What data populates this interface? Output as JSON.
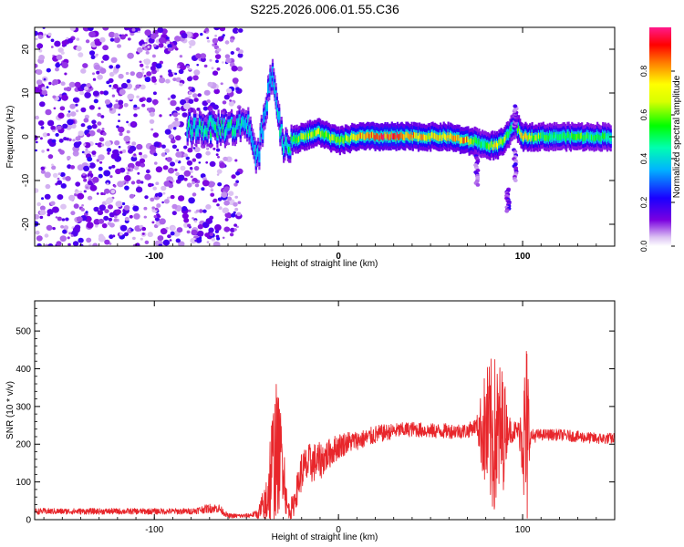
{
  "title": "S225.2026.006.01.55.C36",
  "chart_data": [
    {
      "type": "heatmap",
      "title": "S225.2026.006.01.55.C36",
      "xlabel": "Height of straight line (km)",
      "ylabel": "Frequency (Hz)",
      "xlim": [
        -165,
        150
      ],
      "ylim": [
        -25,
        25
      ],
      "x_ticks": [
        -100,
        0,
        100
      ],
      "y_ticks": [
        -20,
        -10,
        0,
        10,
        20
      ],
      "colorbar": {
        "label": "Normalized spectral amplitude",
        "range": [
          0.0,
          1.0
        ],
        "ticks": [
          "0.0",
          "0.2",
          "0.4",
          "0.6",
          "0.8"
        ],
        "tick_values": [
          0.0,
          0.2,
          0.4,
          0.6,
          0.8
        ]
      },
      "noise_region_x": [
        -165,
        -53
      ],
      "ridge": [
        {
          "x": -82,
          "y": 2,
          "amp": 0.45
        },
        {
          "x": -55,
          "y": 2,
          "amp": 0.45
        },
        {
          "x": -50,
          "y": 4,
          "amp": 0.4
        },
        {
          "x": -47,
          "y": 0,
          "amp": 0.35
        },
        {
          "x": -44,
          "y": -6,
          "amp": 0.35
        },
        {
          "x": -40,
          "y": 6,
          "amp": 0.35
        },
        {
          "x": -36,
          "y": 15,
          "amp": 0.35
        },
        {
          "x": -30,
          "y": -2,
          "amp": 0.45
        },
        {
          "x": -20,
          "y": 0,
          "amp": 0.6
        },
        {
          "x": -10,
          "y": 1,
          "amp": 0.65
        },
        {
          "x": 0,
          "y": -1,
          "amp": 0.6
        },
        {
          "x": 10,
          "y": 0,
          "amp": 0.75
        },
        {
          "x": 20,
          "y": 0,
          "amp": 0.85
        },
        {
          "x": 30,
          "y": 0,
          "amp": 0.9
        },
        {
          "x": 40,
          "y": 0,
          "amp": 0.8
        },
        {
          "x": 50,
          "y": 0,
          "amp": 0.7
        },
        {
          "x": 60,
          "y": 0,
          "amp": 0.75
        },
        {
          "x": 70,
          "y": -1,
          "amp": 0.8
        },
        {
          "x": 75,
          "y": -1,
          "amp": 0.5
        },
        {
          "x": 80,
          "y": -2,
          "amp": 0.5
        },
        {
          "x": 86,
          "y": -2,
          "amp": 0.75
        },
        {
          "x": 90,
          "y": -1,
          "amp": 0.6
        },
        {
          "x": 96,
          "y": 3,
          "amp": 0.4
        },
        {
          "x": 100,
          "y": 0,
          "amp": 0.75
        },
        {
          "x": 110,
          "y": 0,
          "amp": 0.55
        },
        {
          "x": 120,
          "y": 0,
          "amp": 0.5
        },
        {
          "x": 130,
          "y": 0,
          "amp": 0.55
        },
        {
          "x": 140,
          "y": 0,
          "amp": 0.5
        },
        {
          "x": 148,
          "y": 0,
          "amp": 0.5
        }
      ]
    },
    {
      "type": "line",
      "xlabel": "Height of straight line (km)",
      "ylabel": "SNR (10 * v/v)",
      "xlim": [
        -165,
        150
      ],
      "ylim": [
        0,
        580
      ],
      "x_ticks": [
        -100,
        0,
        100
      ],
      "y_ticks": [
        0,
        100,
        200,
        300,
        400,
        500
      ],
      "series": [
        {
          "name": "SNR",
          "color": "#e8262b",
          "x": [
            -165,
            -140,
            -120,
            -100,
            -80,
            -70,
            -65,
            -60,
            -50,
            -45,
            -40,
            -37,
            -34,
            -30,
            -28,
            -25,
            -20,
            -15,
            -10,
            -5,
            0,
            5,
            10,
            15,
            20,
            30,
            40,
            50,
            60,
            70,
            75,
            80,
            82,
            84,
            86,
            88,
            90,
            92,
            95,
            98,
            100,
            101,
            102,
            103,
            104,
            110,
            120,
            130,
            140,
            150
          ],
          "values": [
            22,
            22,
            22,
            22,
            22,
            30,
            30,
            10,
            10,
            15,
            30,
            120,
            180,
            160,
            30,
            30,
            130,
            150,
            155,
            175,
            195,
            205,
            210,
            215,
            225,
            235,
            240,
            235,
            235,
            235,
            250,
            230,
            220,
            220,
            220,
            230,
            240,
            240,
            235,
            235,
            240,
            200,
            200,
            200,
            220,
            225,
            225,
            220,
            215,
            215
          ],
          "amplitude": [
            8,
            8,
            8,
            8,
            8,
            12,
            12,
            6,
            6,
            8,
            60,
            140,
            190,
            100,
            40,
            30,
            55,
            55,
            50,
            40,
            35,
            30,
            25,
            25,
            25,
            20,
            20,
            20,
            20,
            20,
            20,
            180,
            200,
            220,
            210,
            190,
            150,
            40,
            30,
            25,
            150,
            220,
            300,
            250,
            20,
            15,
            15,
            15,
            15,
            15
          ]
        }
      ]
    }
  ]
}
